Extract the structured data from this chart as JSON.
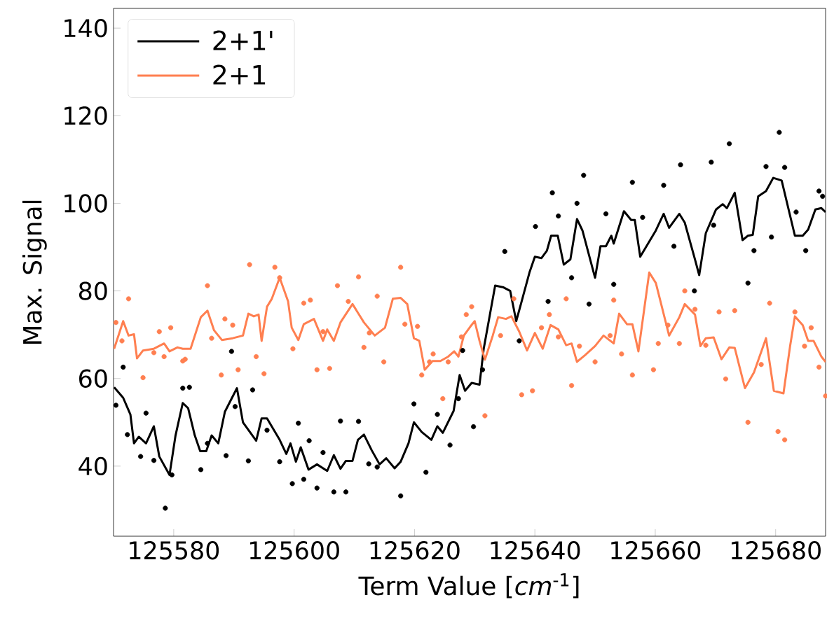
{
  "chart_data": {
    "type": "line",
    "xlabel": "Term Value [*cm*$^{-1}$]",
    "ylabel": "Max. Signal",
    "xlim": [
      125570,
      125688.3
    ],
    "ylim": [
      24,
      144.5
    ],
    "xticks": [
      125580,
      125600,
      125620,
      125640,
      125660,
      125680
    ],
    "yticks": [
      40,
      60,
      80,
      100,
      120,
      140
    ],
    "grid": false,
    "legend": "top left",
    "series": [
      {
        "name": "2+1'",
        "color": "#000000",
        "x": [
          125570.1,
          125571.6,
          125572.8,
          125573.4,
          125574.2,
          125575.4,
          125576.7,
          125577.6,
          125579.3,
          125580.3,
          125581.5,
          125582.4,
          125583.5,
          125584.4,
          125585.4,
          125586.3,
          125587.4,
          125588.5,
          125590.5,
          125591.5,
          125593.7,
          125594.6,
          125595.5,
          125597.6,
          125598.7,
          125599.4,
          125600.3,
          125601.1,
          125602.4,
          125603.8,
          125605.5,
          125606.6,
          125607.7,
          125608.6,
          125609.7,
          125610.6,
          125611.6,
          125612.9,
          125614.2,
          125615.3,
          125616.7,
          125617.7,
          125619.0,
          125619.9,
          125621.2,
          125622.8,
          125623.8,
          125624.7,
          125626.5,
          125627.5,
          125628.4,
          125629.5,
          125630.8,
          125631.5,
          125633.4,
          125634.8,
          125635.9,
          125636.9,
          125637.8,
          125639.1,
          125640.0,
          125641.1,
          125642.0,
          125642.7,
          125643.8,
          125644.8,
          125645.9,
          125647.0,
          125647.9,
          125650.0,
          125650.9,
          125651.8,
          125652.7,
          125653.1,
          125654.8,
          125656.0,
          125656.6,
          125657.5,
          125658.8,
          125660.1,
          125661.4,
          125662.3,
          125664.0,
          125664.9,
          125666.6,
          125667.3,
          125668.4,
          125670.1,
          125671.2,
          125671.9,
          125673.2,
          125674.5,
          125675.4,
          125676.2,
          125677.1,
          125678.4,
          125679.6,
          125681.0,
          125683.2,
          125684.5,
          125685.4,
          125686.6,
          125687.6,
          125688.3
        ],
        "values": [
          58.0,
          55.6,
          51.8,
          45.2,
          46.7,
          45.2,
          49.1,
          42.2,
          38.0,
          47.0,
          54.4,
          53.2,
          47.0,
          43.4,
          43.4,
          47.0,
          45.2,
          52.4,
          57.8,
          50.0,
          45.8,
          50.9,
          50.9,
          46.0,
          42.8,
          45.2,
          41.0,
          44.3,
          39.2,
          40.4,
          38.9,
          42.5,
          39.4,
          41.2,
          41.2,
          46.0,
          47.2,
          43.6,
          40.4,
          41.8,
          39.5,
          41.0,
          45.2,
          50.0,
          47.8,
          46.0,
          49.1,
          47.6,
          52.6,
          60.8,
          57.2,
          59.0,
          58.6,
          66.8,
          81.2,
          80.8,
          80.0,
          73.1,
          77.6,
          84.2,
          87.8,
          87.5,
          89.2,
          92.6,
          92.6,
          86.0,
          87.2,
          96.4,
          93.8,
          83.0,
          90.2,
          90.2,
          92.6,
          90.8,
          98.2,
          96.2,
          96.2,
          87.8,
          90.8,
          93.8,
          97.6,
          94.4,
          97.6,
          95.6,
          87.2,
          83.6,
          93.2,
          98.6,
          99.8,
          98.9,
          102.4,
          91.6,
          92.6,
          92.8,
          101.6,
          102.8,
          105.8,
          105.2,
          92.6,
          92.6,
          94.0,
          98.6,
          98.9,
          98.0
        ]
      },
      {
        "name": "2+1",
        "color": "#ff7f50",
        "x": [
          125570.1,
          125571.6,
          125572.5,
          125573.4,
          125573.9,
          125574.9,
          125576.7,
          125578.4,
          125579.3,
          125580.6,
          125581.5,
          125582.8,
          125584.5,
          125585.6,
          125586.7,
          125588.0,
          125589.8,
          125591.5,
          125592.4,
          125593.3,
          125594.1,
          125594.6,
          125595.5,
          125596.3,
          125597.6,
          125599.0,
          125599.6,
          125600.7,
          125601.6,
          125603.3,
          125604.8,
          125605.5,
          125606.6,
          125607.7,
          125609.7,
          125611.6,
          125613.4,
          125615.1,
          125616.4,
          125617.7,
          125618.8,
          125619.9,
          125620.8,
          125621.7,
          125623.0,
          125624.3,
          125625.6,
          125626.6,
          125627.3,
          125628.2,
          125629.3,
          125630.0,
          125630.8,
          125631.7,
          125633.0,
          125633.9,
          125635.2,
          125636.1,
          125637.4,
          125638.7,
          125640.0,
          125641.3,
          125642.6,
          125643.9,
          125645.2,
          125646.1,
          125647.0,
          125648.3,
          125650.0,
          125651.4,
          125653.1,
          125654.0,
          125655.3,
          125656.2,
          125657.2,
          125659.0,
          125660.1,
          125662.3,
          125664.0,
          125664.9,
          125666.6,
          125667.5,
          125668.4,
          125669.7,
          125671.0,
          125672.3,
          125673.2,
          125674.9,
          125676.4,
          125678.4,
          125679.7,
          125681.3,
          125682.4,
          125683.2,
          125684.5,
          125685.4,
          125686.3,
          125687.6,
          125688.3
        ],
        "values": [
          66.8,
          73.1,
          69.8,
          70.1,
          64.6,
          66.4,
          66.8,
          68.0,
          66.2,
          67.1,
          66.8,
          66.8,
          74.0,
          75.5,
          71.0,
          68.8,
          69.2,
          69.8,
          74.8,
          74.2,
          74.6,
          68.6,
          76.4,
          78.2,
          83.0,
          77.6,
          71.6,
          68.8,
          72.4,
          73.6,
          68.6,
          71.2,
          68.6,
          72.8,
          77.0,
          72.8,
          69.8,
          71.6,
          78.2,
          78.4,
          77.0,
          69.2,
          68.6,
          62.0,
          64.0,
          64.0,
          65.0,
          66.2,
          65.0,
          69.8,
          71.9,
          73.1,
          68.6,
          64.3,
          69.8,
          74.0,
          73.6,
          74.2,
          70.7,
          66.4,
          70.4,
          66.8,
          72.2,
          71.2,
          67.6,
          68.0,
          63.8,
          65.3,
          67.4,
          69.8,
          68.0,
          74.8,
          72.4,
          72.4,
          66.2,
          84.2,
          81.8,
          69.8,
          74.0,
          77.0,
          74.6,
          67.4,
          69.2,
          69.4,
          64.4,
          67.1,
          67.0,
          57.8,
          61.4,
          69.2,
          57.2,
          56.6,
          67.4,
          74.2,
          72.2,
          68.6,
          68.6,
          65.0,
          63.8
        ]
      },
      {
        "type": "scatter",
        "color": "#000000",
        "x": [
          125570.4,
          125571.6,
          125572.3,
          125574.5,
          125575.4,
          125576.7,
          125578.6,
          125579.7,
          125581.5,
          125582.6,
          125584.5,
          125585.6,
          125588.7,
          125589.6,
          125590.2,
          125592.4,
          125593.1,
          125595.5,
          125597.6,
          125599.7,
          125600.7,
          125601.6,
          125602.5,
          125603.8,
          125604.8,
          125606.6,
          125607.7,
          125608.6,
          125610.7,
          125612.4,
          125613.8,
          125617.7,
          125619.9,
          125621.9,
          125623.8,
          125625.9,
          125627.3,
          125628.0,
          125629.8,
          125631.3,
          125635.0,
          125637.4,
          125640.1,
          125642.2,
          125642.9,
          125643.9,
          125646.1,
          125647.0,
          125648.1,
          125649.0,
          125651.8,
          125653.1,
          125656.2,
          125657.9,
          125661.4,
          125663.1,
          125664.2,
          125666.5,
          125669.3,
          125669.7,
          125672.3,
          125675.4,
          125676.4,
          125678.4,
          125679.3,
          125680.6,
          125681.5,
          125683.4,
          125685.0,
          125687.2,
          125687.8
        ],
        "values": [
          53.9,
          62.6,
          47.2,
          42.2,
          52.1,
          41.3,
          30.4,
          38.0,
          57.8,
          58.0,
          39.2,
          45.2,
          42.4,
          66.2,
          53.6,
          41.2,
          57.4,
          48.2,
          41.0,
          36.0,
          49.8,
          37.0,
          45.8,
          35.0,
          43.1,
          34.1,
          50.3,
          34.1,
          50.2,
          40.5,
          39.8,
          33.2,
          54.2,
          38.6,
          51.8,
          44.8,
          55.4,
          66.4,
          49.0,
          62.0,
          89.0,
          68.6,
          94.7,
          77.6,
          102.4,
          97.1,
          83.0,
          100.0,
          106.4,
          77.0,
          97.6,
          81.5,
          104.8,
          96.8,
          104.1,
          90.2,
          108.8,
          80.0,
          109.4,
          95.0,
          113.6,
          81.8,
          89.2,
          108.4,
          92.3,
          116.2,
          108.2,
          98.0,
          89.2,
          102.8,
          101.6
        ]
      },
      {
        "type": "scatter",
        "color": "#ff7f50",
        "x": [
          125570.4,
          125571.4,
          125572.5,
          125574.9,
          125576.7,
          125577.6,
          125578.4,
          125579.5,
          125581.5,
          125581.9,
          125585.6,
          125586.3,
          125587.9,
          125588.5,
          125589.8,
          125590.7,
          125592.6,
          125593.7,
          125595.0,
          125596.8,
          125597.6,
          125599.8,
          125601.6,
          125602.7,
          125603.8,
          125604.8,
          125605.9,
          125607.2,
          125609.0,
          125610.7,
          125611.6,
          125612.5,
          125613.8,
          125614.9,
          125617.7,
          125618.4,
          125620.5,
          125621.2,
          125622.5,
          125623.1,
          125624.7,
          125625.6,
          125627.8,
          125628.6,
          125629.5,
          125631.7,
          125634.3,
          125636.5,
          125637.8,
          125639.6,
          125641.1,
          125642.4,
          125643.9,
          125645.2,
          125646.1,
          125647.4,
          125650.0,
          125652.5,
          125653.1,
          125654.4,
          125656.2,
          125659.7,
          125660.5,
          125662.1,
          125664.0,
          125664.9,
          125666.6,
          125668.4,
          125670.6,
          125671.7,
          125673.2,
          125675.4,
          125677.6,
          125679.0,
          125680.4,
          125681.5,
          125683.2,
          125684.8,
          125685.9,
          125687.2,
          125688.3
        ],
        "values": [
          72.8,
          68.6,
          78.2,
          60.2,
          65.9,
          70.7,
          65.0,
          71.6,
          64.0,
          64.4,
          81.2,
          69.2,
          60.8,
          73.6,
          72.2,
          62.0,
          86.0,
          65.0,
          61.1,
          85.4,
          83.0,
          66.8,
          77.2,
          77.9,
          62.0,
          70.7,
          62.3,
          81.2,
          77.6,
          83.2,
          67.1,
          70.4,
          78.8,
          63.8,
          85.4,
          72.4,
          71.9,
          60.8,
          63.8,
          65.6,
          55.4,
          63.8,
          69.5,
          74.6,
          76.4,
          51.5,
          69.8,
          78.2,
          56.3,
          57.2,
          71.6,
          74.6,
          69.5,
          78.2,
          58.4,
          67.4,
          63.8,
          69.8,
          77.9,
          65.6,
          60.8,
          62.0,
          68.0,
          72.2,
          68.0,
          80.0,
          75.8,
          67.6,
          75.2,
          59.9,
          75.5,
          50.0,
          63.2,
          77.2,
          47.9,
          46.0,
          75.2,
          67.4,
          71.6,
          62.6,
          56.0
        ]
      }
    ]
  }
}
